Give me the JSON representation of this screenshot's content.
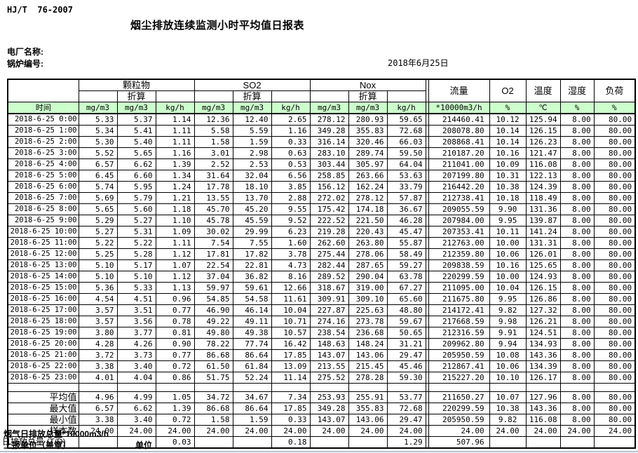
{
  "page": {
    "doc_code": "HJ/T  76-2007",
    "title": "烟尘排放连续监测小时平均值日报表",
    "plant_name_label": "电厂名称:",
    "boiler_no_label": "锅炉编号:",
    "date": "2018年6月25日"
  },
  "table": {
    "group_headers": [
      "颗粒物",
      "SO2",
      "Nox"
    ],
    "converted_label": "折算",
    "single_headers": [
      "流量",
      "O2",
      "温度",
      "湿度",
      "负荷"
    ],
    "time_label": "时间",
    "units": [
      "mg/m3",
      "mg/m3",
      "kg/h",
      "mg/m3",
      "mg/m3",
      "kg/h",
      "mg/m3",
      "mg/m3",
      "kg/h",
      "*10000m3/h",
      "%",
      "℃",
      "%",
      "%"
    ],
    "rows": [
      {
        "time": "2018-6-25 0:00",
        "values": [
          "5.33",
          "5.37",
          "1.14",
          "12.36",
          "12.40",
          "2.65",
          "278.12",
          "280.93",
          "59.65",
          "214460.41",
          "10.12",
          "125.94",
          "8.00",
          "80.00"
        ]
      },
      {
        "time": "2018-6-25 1:00",
        "values": [
          "5.34",
          "5.41",
          "1.11",
          "5.58",
          "5.59",
          "1.16",
          "349.28",
          "355.83",
          "72.68",
          "208078.80",
          "10.14",
          "126.15",
          "8.00",
          "80.00"
        ]
      },
      {
        "time": "2018-6-25 2:00",
        "values": [
          "5.30",
          "5.40",
          "1.11",
          "1.58",
          "1.59",
          "0.33",
          "316.14",
          "320.46",
          "66.03",
          "208868.41",
          "10.14",
          "126.23",
          "8.00",
          "80.00"
        ]
      },
      {
        "time": "2018-6-25 3:00",
        "values": [
          "5.52",
          "5.65",
          "1.16",
          "3.01",
          "2.98",
          "0.63",
          "283.10",
          "289.74",
          "59.50",
          "210187.20",
          "10.16",
          "121.47",
          "8.00",
          "80.00"
        ]
      },
      {
        "time": "2018-6-25 4:00",
        "values": [
          "6.57",
          "6.62",
          "1.39",
          "2.52",
          "2.53",
          "0.53",
          "303.44",
          "305.97",
          "64.04",
          "211041.00",
          "10.09",
          "116.08",
          "8.00",
          "80.00"
        ]
      },
      {
        "time": "2018-6-25 5:00",
        "values": [
          "6.45",
          "6.60",
          "1.34",
          "31.64",
          "32.04",
          "6.56",
          "258.85",
          "263.66",
          "53.63",
          "207199.80",
          "10.31",
          "122.13",
          "8.00",
          "80.00"
        ]
      },
      {
        "time": "2018-6-25 6:00",
        "values": [
          "5.74",
          "5.95",
          "1.24",
          "17.78",
          "18.10",
          "3.85",
          "156.12",
          "162.24",
          "33.79",
          "216442.20",
          "10.38",
          "124.39",
          "8.00",
          "80.00"
        ]
      },
      {
        "time": "2018-6-25 7:00",
        "values": [
          "5.69",
          "5.79",
          "1.21",
          "13.55",
          "13.70",
          "2.88",
          "272.02",
          "278.12",
          "57.87",
          "212738.41",
          "10.18",
          "118.49",
          "8.00",
          "80.00"
        ]
      },
      {
        "time": "2018-6-25 8:00",
        "values": [
          "5.65",
          "5.60",
          "1.18",
          "45.70",
          "45.20",
          "9.55",
          "175.42",
          "174.18",
          "36.67",
          "209055.59",
          "9.90",
          "131.36",
          "8.00",
          "80.00"
        ]
      },
      {
        "time": "2018-6-25 9:00",
        "values": [
          "5.29",
          "5.27",
          "1.10",
          "45.78",
          "45.59",
          "9.52",
          "222.52",
          "221.50",
          "46.28",
          "207984.00",
          "9.95",
          "139.87",
          "8.00",
          "80.00"
        ]
      },
      {
        "time": "2018-6-25 10:00",
        "values": [
          "5.27",
          "5.31",
          "1.09",
          "30.02",
          "29.99",
          "6.23",
          "219.28",
          "220.43",
          "45.47",
          "207353.41",
          "10.11",
          "141.24",
          "8.00",
          "80.00"
        ]
      },
      {
        "time": "2018-6-25 11:00",
        "values": [
          "5.22",
          "5.22",
          "1.11",
          "7.54",
          "7.55",
          "1.60",
          "262.60",
          "263.80",
          "55.87",
          "212763.00",
          "10.00",
          "131.31",
          "8.00",
          "80.00"
        ]
      },
      {
        "time": "2018-6-25 12:00",
        "values": [
          "5.25",
          "5.28",
          "1.12",
          "17.81",
          "17.82",
          "3.78",
          "275.44",
          "278.06",
          "58.49",
          "212359.80",
          "10.06",
          "126.01",
          "8.00",
          "80.00"
        ]
      },
      {
        "time": "2018-6-25 13:00",
        "values": [
          "5.10",
          "5.17",
          "1.07",
          "22.54",
          "22.81",
          "4.73",
          "282.44",
          "287.65",
          "59.27",
          "209838.59",
          "10.16",
          "125.65",
          "8.00",
          "80.00"
        ]
      },
      {
        "time": "2018-6-25 14:00",
        "values": [
          "5.10",
          "5.10",
          "1.12",
          "37.04",
          "36.82",
          "8.16",
          "289.52",
          "290.04",
          "63.78",
          "220299.59",
          "10.00",
          "124.93",
          "8.00",
          "80.00"
        ]
      },
      {
        "time": "2018-6-25 15:00",
        "values": [
          "5.36",
          "5.33",
          "1.13",
          "59.97",
          "59.61",
          "12.66",
          "318.67",
          "319.00",
          "67.27",
          "211095.00",
          "10.04",
          "126.15",
          "8.00",
          "80.00"
        ]
      },
      {
        "time": "2018-6-25 16:00",
        "values": [
          "4.54",
          "4.51",
          "0.96",
          "54.85",
          "54.58",
          "11.61",
          "309.91",
          "309.10",
          "65.60",
          "211675.80",
          "9.95",
          "126.86",
          "8.00",
          "80.00"
        ]
      },
      {
        "time": "2018-6-25 17:00",
        "values": [
          "3.57",
          "3.51",
          "0.77",
          "46.90",
          "46.14",
          "10.04",
          "227.87",
          "225.63",
          "48.80",
          "214172.41",
          "9.82",
          "127.32",
          "8.00",
          "80.00"
        ]
      },
      {
        "time": "2018-6-25 18:00",
        "values": [
          "3.57",
          "3.56",
          "0.78",
          "49.22",
          "49.11",
          "10.71",
          "274.16",
          "273.78",
          "59.67",
          "217668.59",
          "9.98",
          "126.21",
          "8.00",
          "80.00"
        ]
      },
      {
        "time": "2018-6-25 19:00",
        "values": [
          "3.80",
          "3.77",
          "0.81",
          "49.80",
          "49.38",
          "10.57",
          "238.54",
          "236.68",
          "50.65",
          "212316.59",
          "9.91",
          "124.51",
          "8.00",
          "80.00"
        ]
      },
      {
        "time": "2018-6-25 20:00",
        "values": [
          "4.28",
          "4.26",
          "0.90",
          "78.22",
          "77.74",
          "16.42",
          "148.63",
          "148.24",
          "31.21",
          "209962.80",
          "9.94",
          "134.93",
          "8.00",
          "80.00"
        ]
      },
      {
        "time": "2018-6-25 21:00",
        "values": [
          "3.72",
          "3.73",
          "0.77",
          "86.68",
          "86.64",
          "17.85",
          "143.07",
          "143.06",
          "29.47",
          "205950.59",
          "10.08",
          "143.36",
          "8.00",
          "80.00"
        ]
      },
      {
        "time": "2018-6-25 22:00",
        "values": [
          "3.38",
          "3.40",
          "0.72",
          "61.50",
          "61.84",
          "13.09",
          "213.55",
          "215.45",
          "45.46",
          "212867.41",
          "10.06",
          "134.39",
          "8.00",
          "80.00"
        ]
      },
      {
        "time": "2018-6-25 23:00",
        "values": [
          "4.01",
          "4.04",
          "0.86",
          "51.75",
          "52.24",
          "11.14",
          "275.52",
          "278.28",
          "59.30",
          "215227.20",
          "10.10",
          "126.17",
          "8.00",
          "80.00"
        ]
      }
    ],
    "summary": [
      {
        "label": "平均值",
        "values": [
          "4.96",
          "4.99",
          "1.05",
          "34.72",
          "34.67",
          "7.34",
          "253.93",
          "255.91",
          "53.77",
          "211650.27",
          "10.07",
          "127.96",
          "8.00",
          "80.00"
        ]
      },
      {
        "label": "最大值",
        "values": [
          "6.57",
          "6.62",
          "1.39",
          "86.68",
          "86.64",
          "17.85",
          "349.28",
          "355.83",
          "72.68",
          "220299.59",
          "10.38",
          "143.36",
          "8.00",
          "80.00"
        ]
      },
      {
        "label": "最小值",
        "values": [
          "3.38",
          "3.40",
          "0.72",
          "1.58",
          "1.59",
          "0.33",
          "143.07",
          "143.06",
          "29.47",
          "205950.59",
          "9.82",
          "116.08",
          "8.00",
          "80.00"
        ]
      },
      {
        "label": "样本数",
        "values": [
          "24.00",
          "24.00",
          "24.00",
          "24.00",
          "24.00",
          "24.00",
          "24.00",
          "24.00",
          "24.00",
          "24.00",
          "24.00",
          "24.00",
          "24.00",
          "24.00"
        ]
      },
      {
        "label": "日排放总量 (T/D)",
        "values": [
          "",
          "",
          "0.03",
          "",
          "",
          "0.18",
          "",
          "",
          "1.29",
          "507.96",
          "",
          "",
          "",
          ""
        ]
      }
    ]
  },
  "footer": {
    "flue_total_label": "烟气日排放总量*10000m3/h",
    "report_unit_label": "上报单位（盖章）",
    "unit_label": "单位"
  },
  "colors": {
    "header_green": "#ccffcc",
    "border": "#000000",
    "window_edge": "#b4c2d2"
  }
}
